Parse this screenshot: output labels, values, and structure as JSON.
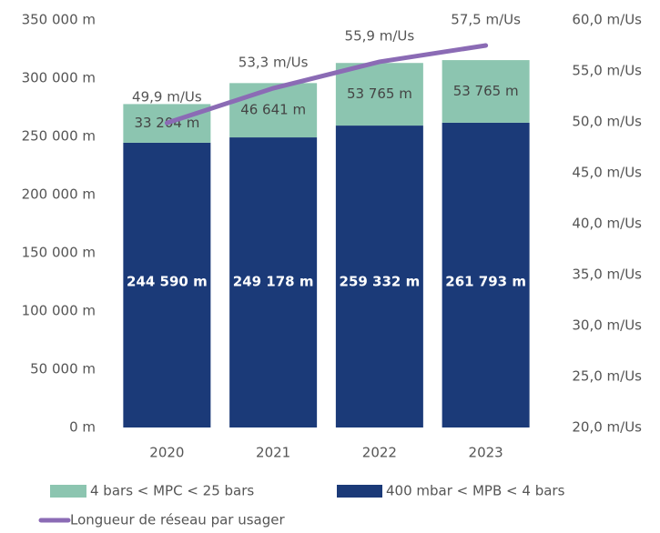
{
  "chart_data": {
    "type": "bar",
    "stacked": true,
    "categories": [
      "2020",
      "2021",
      "2022",
      "2023"
    ],
    "series": [
      {
        "name": "400 mbar < MPB < 4 bars",
        "color": "#1b3a78",
        "values": [
          244590,
          249178,
          259332,
          261793
        ],
        "value_labels": [
          "244 590 m",
          "249 178 m",
          "259 332 m",
          "261 793 m"
        ]
      },
      {
        "name": "4 bars < MPC < 25 bars",
        "color": "#8cc5b0",
        "values": [
          33204,
          46641,
          53765,
          53765
        ],
        "value_labels": [
          "33 204 m",
          "46 641 m",
          "53 765 m",
          "53 765 m"
        ]
      },
      {
        "name": "Longueur de réseau par usager",
        "type": "line",
        "axis": "y2",
        "color": "#8b6bb5",
        "values": [
          49.9,
          53.3,
          55.9,
          57.5
        ],
        "value_labels": [
          "49,9 m/Us",
          "53,3 m/Us",
          "55,9 m/Us",
          "57,5 m/Us"
        ]
      }
    ],
    "ylim": [
      0,
      350000
    ],
    "yticks": [
      {
        "value": 0,
        "label": "0 m"
      },
      {
        "value": 50000,
        "label": "50 000 m"
      },
      {
        "value": 100000,
        "label": "100 000 m"
      },
      {
        "value": 150000,
        "label": "150 000 m"
      },
      {
        "value": 200000,
        "label": "200 000 m"
      },
      {
        "value": 250000,
        "label": "250 000 m"
      },
      {
        "value": 300000,
        "label": "300 000 m"
      },
      {
        "value": 350000,
        "label": "350 000 m"
      }
    ],
    "y2lim": [
      20,
      60
    ],
    "y2ticks": [
      {
        "value": 20,
        "label": "20,0 m/Us"
      },
      {
        "value": 25,
        "label": "25,0 m/Us"
      },
      {
        "value": 30,
        "label": "30,0 m/Us"
      },
      {
        "value": 35,
        "label": "35,0 m/Us"
      },
      {
        "value": 40,
        "label": "40,0 m/Us"
      },
      {
        "value": 45,
        "label": "45,0 m/Us"
      },
      {
        "value": 50,
        "label": "50,0 m/Us"
      },
      {
        "value": 55,
        "label": "55,0 m/Us"
      },
      {
        "value": 60,
        "label": "60,0 m/Us"
      }
    ]
  }
}
